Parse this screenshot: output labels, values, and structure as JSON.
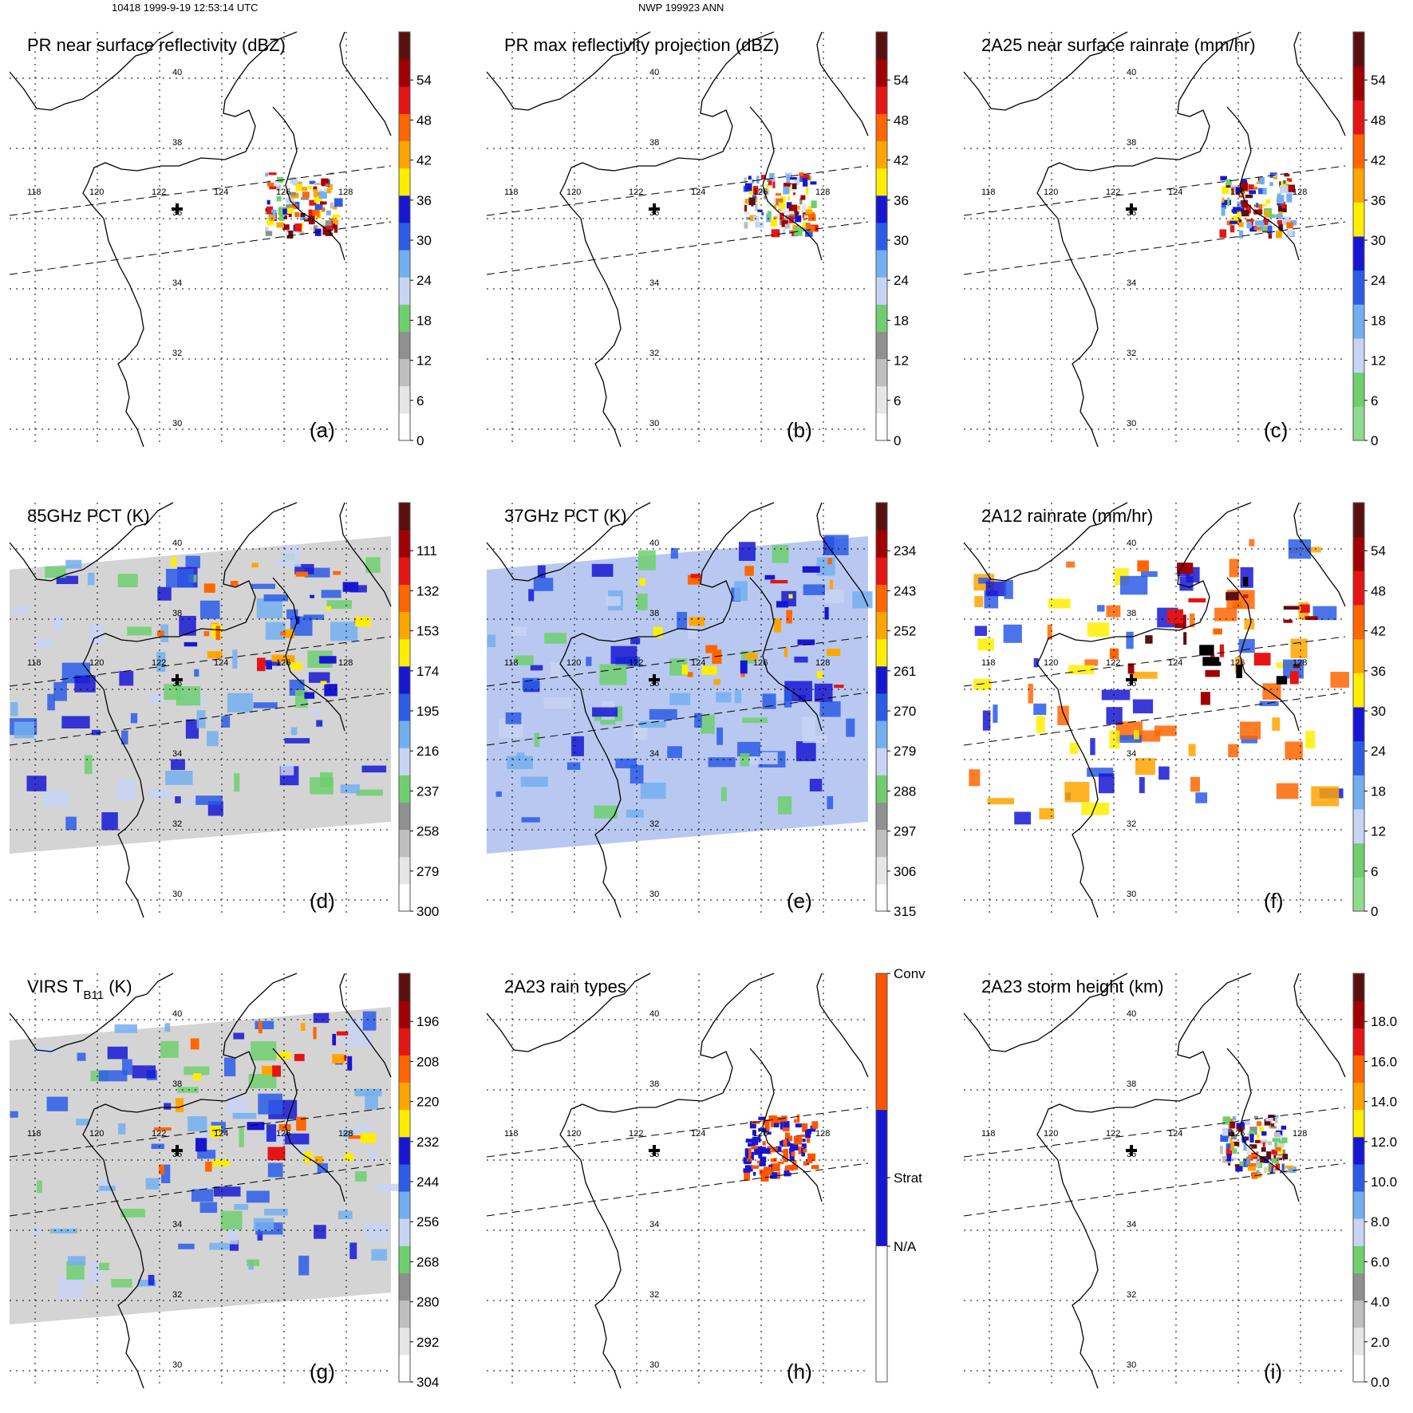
{
  "header": {
    "left": "10418 1999-9-19 12:53:14 UTC",
    "center": "NWP 199923 ANN"
  },
  "map": {
    "lon_labels": [
      "118",
      "120",
      "122",
      "124",
      "126",
      "128"
    ],
    "lat_labels": [
      "30",
      "32",
      "34",
      "36",
      "38",
      "40"
    ],
    "cross_marker": "cross-icon"
  },
  "panels": [
    {
      "id": "a",
      "label": "(a)",
      "title": "PR near surface reflectivity (dBZ)",
      "ticks": [
        "0",
        "6",
        "12",
        "18",
        "24",
        "30",
        "36",
        "42",
        "48",
        "54"
      ],
      "swath": "narrow",
      "colors": [
        "#ffffff",
        "#e6e6e6",
        "#bfbfbf",
        "#909090",
        "#6fcf6f",
        "#c8d4f4",
        "#73aff0",
        "#2c5ce6",
        "#1717d2",
        "#ffee00",
        "#ffa500",
        "#ff6600",
        "#e51515",
        "#a00000",
        "#5a1010"
      ]
    },
    {
      "id": "b",
      "label": "(b)",
      "title": "PR max reflectivity projection (dBZ)",
      "ticks": [
        "0",
        "6",
        "12",
        "18",
        "24",
        "30",
        "36",
        "42",
        "48",
        "54"
      ],
      "swath": "narrow",
      "colors": [
        "#ffffff",
        "#e6e6e6",
        "#bfbfbf",
        "#909090",
        "#6fcf6f",
        "#c8d4f4",
        "#73aff0",
        "#2c5ce6",
        "#1717d2",
        "#ffee00",
        "#ffa500",
        "#ff6600",
        "#e51515",
        "#a00000",
        "#5a1010"
      ]
    },
    {
      "id": "c",
      "label": "(c)",
      "title": "2A25 near surface rainrate (mm/hr)",
      "ticks": [
        "0",
        "6",
        "12",
        "18",
        "24",
        "30",
        "36",
        "42",
        "48",
        "54"
      ],
      "swath": "narrow",
      "colors": [
        "#8fdc8f",
        "#6fcf6f",
        "#c8d4f4",
        "#73aff0",
        "#2c5ce6",
        "#1717d2",
        "#ffee00",
        "#ffa500",
        "#ff6600",
        "#e51515",
        "#a00000",
        "#5a1010"
      ]
    },
    {
      "id": "d",
      "label": "(d)",
      "title": "85GHz PCT (K)",
      "ticks": [
        "300",
        "279",
        "258",
        "237",
        "216",
        "195",
        "174",
        "153",
        "132",
        "111"
      ],
      "swath": "wide",
      "colors": [
        "#ffffff",
        "#e6e6e6",
        "#bfbfbf",
        "#909090",
        "#6fcf6f",
        "#c8d4f4",
        "#73aff0",
        "#2c5ce6",
        "#1717d2",
        "#ffee00",
        "#ffa500",
        "#ff6600",
        "#e51515",
        "#a00000",
        "#5a1010"
      ]
    },
    {
      "id": "e",
      "label": "(e)",
      "title": "37GHz PCT (K)",
      "ticks": [
        "315",
        "306",
        "297",
        "288",
        "279",
        "270",
        "261",
        "252",
        "243",
        "234"
      ],
      "swath": "wide",
      "colors": [
        "#ffffff",
        "#e6e6e6",
        "#bfbfbf",
        "#909090",
        "#6fcf6f",
        "#c8d4f4",
        "#73aff0",
        "#2c5ce6",
        "#1717d2",
        "#ffee00",
        "#ffa500",
        "#ff6600",
        "#e51515",
        "#a00000",
        "#5a1010"
      ]
    },
    {
      "id": "f",
      "label": "(f)",
      "title": "2A12 rainrate (mm/hr)",
      "ticks": [
        "0",
        "6",
        "12",
        "18",
        "24",
        "30",
        "36",
        "42",
        "48",
        "54"
      ],
      "swath": "wide",
      "colors": [
        "#8fdc8f",
        "#6fcf6f",
        "#c8d4f4",
        "#73aff0",
        "#2c5ce6",
        "#1717d2",
        "#ffee00",
        "#ffa500",
        "#ff6600",
        "#e51515",
        "#a00000",
        "#5a1010"
      ]
    },
    {
      "id": "g",
      "label": "(g)",
      "title": "VIRS T",
      "title_sub": "B11",
      "title_suffix": " (K)",
      "ticks": [
        "304",
        "292",
        "280",
        "268",
        "256",
        "244",
        "232",
        "220",
        "208",
        "196"
      ],
      "swath": "wide",
      "colors": [
        "#ffffff",
        "#e6e6e6",
        "#bfbfbf",
        "#909090",
        "#6fcf6f",
        "#c8d4f4",
        "#73aff0",
        "#2c5ce6",
        "#1717d2",
        "#ffee00",
        "#ffa500",
        "#ff6600",
        "#e51515",
        "#a00000",
        "#5a1010"
      ]
    },
    {
      "id": "h",
      "label": "(h)",
      "title": "2A23 rain types",
      "ticks": [
        "N/A",
        "Strat",
        "Conv"
      ],
      "swath": "narrow",
      "colors": [
        "#ffffff",
        "#1717d2",
        "#ff5500"
      ]
    },
    {
      "id": "i",
      "label": "(i)",
      "title": "2A23 storm height (km)",
      "ticks": [
        "0.0",
        "2.0",
        "4.0",
        "6.0",
        "8.0",
        "10.0",
        "12.0",
        "14.0",
        "16.0",
        "18.0"
      ],
      "swath": "narrow",
      "colors": [
        "#ffffff",
        "#e6e6e6",
        "#bfbfbf",
        "#909090",
        "#6fcf6f",
        "#c8d4f4",
        "#73aff0",
        "#2c5ce6",
        "#1717d2",
        "#ffee00",
        "#ffa500",
        "#ff6600",
        "#e51515",
        "#a00000",
        "#5a1010"
      ]
    }
  ]
}
